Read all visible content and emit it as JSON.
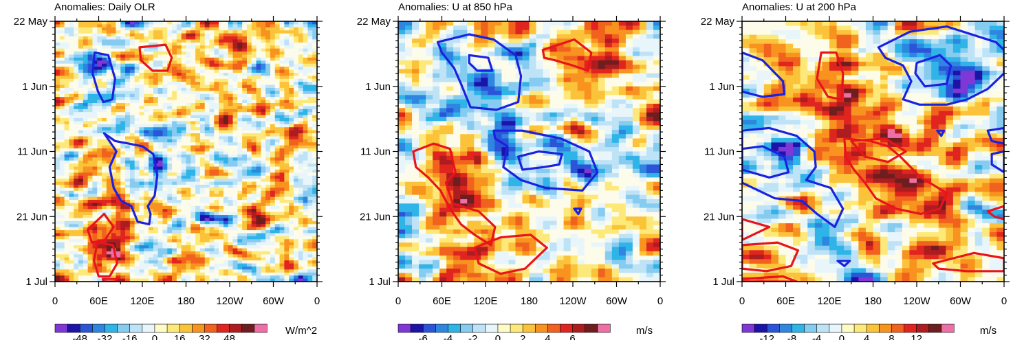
{
  "chart_data": [
    {
      "type": "heatmap",
      "title": "Anomalies: Daily OLR",
      "y_tick_labels": [
        "22 May",
        "1 Jun",
        "11 Jun",
        "21 Jun",
        "1 Jul"
      ],
      "x_tick_labels": [
        "0",
        "60E",
        "120E",
        "180",
        "120W",
        "60W",
        "0"
      ],
      "colorbar": {
        "labels": [
          "-48",
          "-32",
          "-16",
          "0",
          "16",
          "32",
          "48"
        ],
        "units": "W/m^2",
        "range": [
          -56,
          56
        ]
      },
      "red_contours": [
        [
          [
            124,
            0.1
          ],
          [
            162,
            0.09
          ],
          [
            171,
            0.14
          ],
          [
            165,
            0.19
          ],
          [
            143,
            0.19
          ],
          [
            126,
            0.15
          ]
        ],
        [
          [
            48,
            0.8
          ],
          [
            72,
            0.74
          ],
          [
            86,
            0.79
          ],
          [
            73,
            0.84
          ],
          [
            54,
            0.85
          ]
        ],
        [
          [
            62,
            0.85
          ],
          [
            85,
            0.86
          ],
          [
            91,
            0.93
          ],
          [
            80,
            0.98
          ],
          [
            64,
            0.98
          ],
          [
            57,
            0.92
          ]
        ],
        [
          [
            70,
            0.99
          ],
          [
            90,
            0.99
          ],
          [
            88,
            1.0
          ],
          [
            72,
            1.0
          ]
        ]
      ],
      "blue_contours": [
        [
          [
            58,
            0.12
          ],
          [
            78,
            0.13
          ],
          [
            88,
            0.22
          ],
          [
            84,
            0.3
          ],
          [
            71,
            0.31
          ],
          [
            63,
            0.27
          ],
          [
            55,
            0.2
          ]
        ],
        [
          [
            72,
            0.43
          ],
          [
            88,
            0.46
          ],
          [
            108,
            0.47
          ],
          [
            128,
            0.48
          ],
          [
            144,
            0.51
          ],
          [
            150,
            0.59
          ],
          [
            146,
            0.67
          ],
          [
            136,
            0.71
          ],
          [
            140,
            0.74
          ],
          [
            138,
            0.78
          ],
          [
            121,
            0.77
          ],
          [
            112,
            0.71
          ],
          [
            97,
            0.69
          ],
          [
            86,
            0.64
          ],
          [
            80,
            0.56
          ],
          [
            90,
            0.5
          ]
        ]
      ]
    },
    {
      "type": "heatmap",
      "title": "Anomalies: U at 850 hPa",
      "y_tick_labels": [
        "22 May",
        "1 Jun",
        "11 Jun",
        "21 Jun",
        "1 Jul"
      ],
      "x_tick_labels": [
        "0",
        "60E",
        "120E",
        "180",
        "120W",
        "60W",
        "0"
      ],
      "colorbar": {
        "labels": [
          "-6",
          "-4",
          "-2",
          "0",
          "2",
          "4",
          "6"
        ],
        "units": "m/s",
        "range": [
          -7,
          7
        ]
      },
      "red_contours": [
        [
          [
            212,
            0.11
          ],
          [
            258,
            0.07
          ],
          [
            283,
            0.12
          ],
          [
            278,
            0.19
          ],
          [
            256,
            0.17
          ],
          [
            230,
            0.15
          ],
          [
            214,
            0.14
          ]
        ],
        [
          [
            22,
            0.5
          ],
          [
            52,
            0.47
          ],
          [
            76,
            0.49
          ],
          [
            84,
            0.58
          ],
          [
            70,
            0.62
          ],
          [
            80,
            0.7
          ],
          [
            118,
            0.73
          ],
          [
            142,
            0.79
          ],
          [
            136,
            0.86
          ],
          [
            112,
            0.82
          ],
          [
            92,
            0.78
          ],
          [
            76,
            0.72
          ],
          [
            62,
            0.65
          ],
          [
            44,
            0.6
          ],
          [
            26,
            0.56
          ]
        ],
        [
          [
            112,
            0.87
          ],
          [
            150,
            0.83
          ],
          [
            194,
            0.82
          ],
          [
            218,
            0.87
          ],
          [
            186,
            0.95
          ],
          [
            150,
            0.97
          ],
          [
            118,
            0.93
          ]
        ]
      ],
      "blue_contours": [
        [
          [
            58,
            0.08
          ],
          [
            104,
            0.05
          ],
          [
            140,
            0.07
          ],
          [
            172,
            0.13
          ],
          [
            180,
            0.21
          ],
          [
            176,
            0.31
          ],
          [
            144,
            0.34
          ],
          [
            106,
            0.33
          ],
          [
            92,
            0.24
          ],
          [
            82,
            0.18
          ],
          [
            64,
            0.12
          ]
        ],
        [
          [
            104,
            0.13
          ],
          [
            132,
            0.14
          ],
          [
            138,
            0.19
          ],
          [
            116,
            0.19
          ],
          [
            104,
            0.16
          ]
        ],
        [
          [
            140,
            0.42
          ],
          [
            182,
            0.42
          ],
          [
            238,
            0.45
          ],
          [
            280,
            0.5
          ],
          [
            292,
            0.58
          ],
          [
            270,
            0.65
          ],
          [
            216,
            0.64
          ],
          [
            180,
            0.61
          ],
          [
            154,
            0.56
          ],
          [
            160,
            0.48
          ],
          [
            142,
            0.45
          ]
        ],
        [
          [
            176,
            0.52
          ],
          [
            206,
            0.5
          ],
          [
            240,
            0.51
          ],
          [
            236,
            0.55
          ],
          [
            214,
            0.56
          ],
          [
            182,
            0.57
          ]
        ],
        [
          [
            258,
            0.72
          ],
          [
            268,
            0.72
          ],
          [
            264,
            0.74
          ]
        ]
      ]
    },
    {
      "type": "heatmap",
      "title": "Anomalies: U at 200 hPa",
      "y_tick_labels": [
        "22 May",
        "1 Jun",
        "11 Jun",
        "21 Jun",
        "1 Jul"
      ],
      "x_tick_labels": [
        "0",
        "60E",
        "120E",
        "180",
        "120W",
        "60W",
        "0"
      ],
      "colorbar": {
        "labels": [
          "-12",
          "-8",
          "-4",
          "0",
          "4",
          "8",
          "12"
        ],
        "units": "m/s",
        "range": [
          -14,
          14
        ]
      },
      "red_contours": [
        [
          [
            116,
            0.12
          ],
          [
            138,
            0.12
          ],
          [
            148,
            0.2
          ],
          [
            146,
            0.3
          ],
          [
            126,
            0.29
          ],
          [
            110,
            0.22
          ]
        ],
        [
          [
            150,
            0.45
          ],
          [
            188,
            0.46
          ],
          [
            214,
            0.48
          ],
          [
            232,
            0.52
          ],
          [
            262,
            0.6
          ],
          [
            300,
            0.66
          ],
          [
            290,
            0.72
          ],
          [
            262,
            0.74
          ],
          [
            226,
            0.72
          ],
          [
            196,
            0.68
          ],
          [
            180,
            0.62
          ],
          [
            164,
            0.57
          ],
          [
            152,
            0.52
          ]
        ],
        [
          [
            160,
            0.46
          ],
          [
            210,
            0.45
          ],
          [
            240,
            0.5
          ],
          [
            214,
            0.54
          ],
          [
            180,
            0.52
          ]
        ],
        [
          [
            0,
            0.76
          ],
          [
            40,
            0.79
          ],
          [
            0,
            0.84
          ]
        ],
        [
          [
            0,
            0.86
          ],
          [
            52,
            0.85
          ],
          [
            82,
            0.88
          ],
          [
            72,
            0.94
          ],
          [
            36,
            0.96
          ],
          [
            0,
            0.95
          ]
        ],
        [
          [
            0,
            0.99
          ],
          [
            60,
            0.98
          ],
          [
            80,
            1.0
          ],
          [
            0,
            1.0
          ]
        ],
        [
          [
            280,
            0.93
          ],
          [
            340,
            0.89
          ],
          [
            384,
            0.91
          ],
          [
            384,
            0.96
          ],
          [
            330,
            0.96
          ],
          [
            288,
            0.95
          ]
        ],
        [
          [
            360,
            0.73
          ],
          [
            384,
            0.71
          ],
          [
            384,
            0.76
          ],
          [
            370,
            0.75
          ]
        ]
      ],
      "blue_contours": [
        [
          [
            200,
            0.1
          ],
          [
            246,
            0.04
          ],
          [
            300,
            0.02
          ],
          [
            372,
            0.08
          ],
          [
            384,
            0.11
          ],
          [
            384,
            0.2
          ],
          [
            360,
            0.26
          ],
          [
            330,
            0.3
          ],
          [
            300,
            0.32
          ],
          [
            260,
            0.32
          ],
          [
            236,
            0.3
          ],
          [
            248,
            0.23
          ],
          [
            236,
            0.17
          ],
          [
            210,
            0.14
          ]
        ],
        [
          [
            256,
            0.16
          ],
          [
            290,
            0.13
          ],
          [
            306,
            0.17
          ],
          [
            300,
            0.24
          ],
          [
            268,
            0.25
          ],
          [
            254,
            0.2
          ]
        ],
        [
          [
            0,
            0.12
          ],
          [
            30,
            0.15
          ],
          [
            60,
            0.23
          ],
          [
            62,
            0.28
          ],
          [
            30,
            0.29
          ],
          [
            0,
            0.27
          ]
        ],
        [
          [
            0,
            0.42
          ],
          [
            40,
            0.41
          ],
          [
            80,
            0.44
          ],
          [
            106,
            0.5
          ],
          [
            108,
            0.56
          ],
          [
            94,
            0.61
          ],
          [
            130,
            0.64
          ],
          [
            148,
            0.72
          ],
          [
            136,
            0.79
          ],
          [
            110,
            0.74
          ],
          [
            88,
            0.69
          ],
          [
            48,
            0.68
          ],
          [
            0,
            0.62
          ]
        ],
        [
          [
            0,
            0.49
          ],
          [
            30,
            0.48
          ],
          [
            62,
            0.52
          ],
          [
            68,
            0.58
          ],
          [
            40,
            0.6
          ],
          [
            0,
            0.57
          ]
        ],
        [
          [
            360,
            0.42
          ],
          [
            384,
            0.41
          ],
          [
            384,
            0.47
          ],
          [
            366,
            0.46
          ]
        ],
        [
          [
            366,
            0.51
          ],
          [
            384,
            0.5
          ],
          [
            384,
            0.58
          ],
          [
            366,
            0.55
          ]
        ],
        [
          [
            286,
            0.42
          ],
          [
            296,
            0.42
          ],
          [
            292,
            0.44
          ]
        ],
        [
          [
            140,
            0.92
          ],
          [
            158,
            0.92
          ],
          [
            150,
            0.94
          ]
        ]
      ]
    }
  ]
}
